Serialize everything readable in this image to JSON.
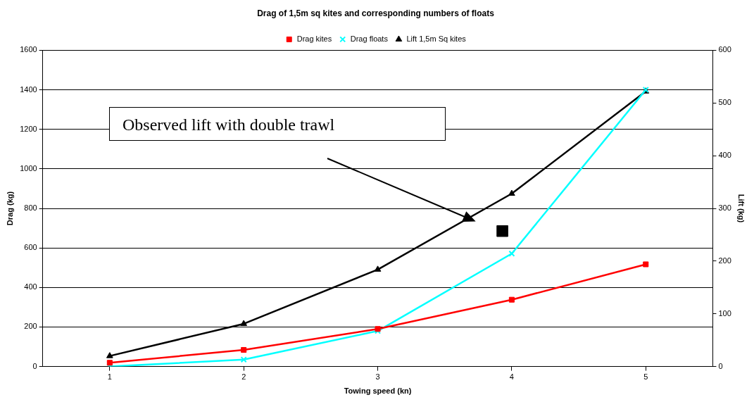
{
  "chart_data": {
    "type": "line",
    "title": "Drag of 1,5m sq kites and corresponding numbers of floats",
    "xlabel": "Towing speed (kn)",
    "ylabel": "Drag (kg)",
    "y2label": "Lift (kg)",
    "x": [
      1,
      2,
      3,
      4,
      5
    ],
    "xlim": [
      0.5,
      5.5
    ],
    "xticks": [
      1,
      2,
      3,
      4,
      5
    ],
    "ylim": [
      0,
      1600
    ],
    "yticks": [
      0,
      200,
      400,
      600,
      800,
      1000,
      1200,
      1400,
      1600
    ],
    "y2lim": [
      0,
      600
    ],
    "y2ticks": [
      0,
      100,
      200,
      300,
      400,
      500,
      600
    ],
    "series": [
      {
        "name": "Drag kites",
        "color": "#ff0000",
        "marker": "square",
        "values": [
          19,
          84,
          190,
          338,
          517
        ]
      },
      {
        "name": "Drag floats",
        "color": "#00ffff",
        "marker": "cross",
        "values": [
          0,
          35,
          180,
          571,
          1400
        ]
      },
      {
        "name": "Lift 1,5m Sq kites",
        "color": "#000000",
        "marker": "triangle",
        "axis": "y2",
        "values": [
          20,
          81,
          184,
          328,
          522
        ]
      },
      {
        "type": "scatter",
        "color": "#000000",
        "marker": "square",
        "axis": "y2",
        "x": [
          3.93
        ],
        "values": [
          257
        ]
      }
    ],
    "annotations": [
      "Observed lift with double trawl"
    ],
    "grid": "y",
    "legend": "top"
  }
}
